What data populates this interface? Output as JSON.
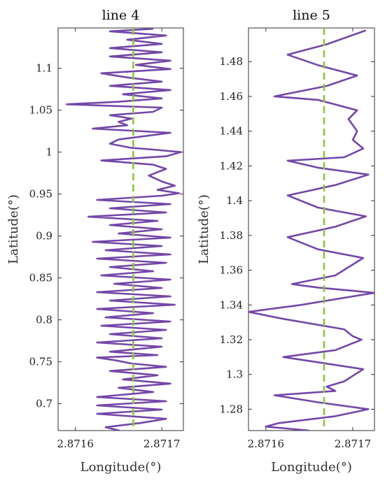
{
  "chart_data": [
    {
      "type": "line",
      "title": "line 4",
      "xlabel": "Longitude(°)",
      "ylabel": "Latitude(°)",
      "xlim": [
        2.87158,
        2.871725
      ],
      "ylim": [
        0.668,
        1.148
      ],
      "xticks": [
        2.8716,
        2.8717
      ],
      "xtick_labels": [
        "2.8716",
        "2.8717"
      ],
      "yticks": [
        0.7,
        0.75,
        0.8,
        0.85,
        0.9,
        0.95,
        1.0,
        1.05,
        1.1
      ],
      "ytick_labels": [
        "0.7",
        "0.75",
        "0.8",
        "0.85",
        "0.9",
        "0.95",
        "1",
        "1.05",
        "1.1"
      ],
      "reference_x": 2.871667,
      "series": [
        {
          "points": [
            [
              2.871651,
              0.668
            ],
            [
              2.871635,
              0.672
            ],
            [
              2.871675,
              0.677
            ],
            [
              2.871705,
              0.682
            ],
            [
              2.871625,
              0.688
            ],
            [
              2.8717,
              0.693
            ],
            [
              2.871625,
              0.698
            ],
            [
              2.871705,
              0.703
            ],
            [
              2.871625,
              0.708
            ],
            [
              2.87169,
              0.714
            ],
            [
              2.87165,
              0.719
            ],
            [
              2.87171,
              0.724
            ],
            [
              2.871655,
              0.729
            ],
            [
              2.871695,
              0.734
            ],
            [
              2.87164,
              0.739
            ],
            [
              2.871705,
              0.744
            ],
            [
              2.871665,
              0.748
            ],
            [
              2.871645,
              0.752
            ],
            [
              2.871625,
              0.755
            ],
            [
              2.871695,
              0.758
            ],
            [
              2.87164,
              0.762
            ],
            [
              2.8717,
              0.768
            ],
            [
              2.871625,
              0.773
            ],
            [
              2.8717,
              0.778
            ],
            [
              2.87164,
              0.783
            ],
            [
              2.871705,
              0.788
            ],
            [
              2.87163,
              0.793
            ],
            [
              2.87171,
              0.798
            ],
            [
              2.871635,
              0.803
            ],
            [
              2.87169,
              0.808
            ],
            [
              2.871625,
              0.813
            ],
            [
              2.871715,
              0.818
            ],
            [
              2.87164,
              0.823
            ],
            [
              2.87171,
              0.828
            ],
            [
              2.871625,
              0.833
            ],
            [
              2.8717,
              0.838
            ],
            [
              2.871645,
              0.843
            ],
            [
              2.87171,
              0.848
            ],
            [
              2.87163,
              0.853
            ],
            [
              2.87169,
              0.858
            ],
            [
              2.87164,
              0.863
            ],
            [
              2.871705,
              0.868
            ],
            [
              2.871625,
              0.873
            ],
            [
              2.87171,
              0.878
            ],
            [
              2.871635,
              0.883
            ],
            [
              2.8717,
              0.888
            ],
            [
              2.87162,
              0.893
            ],
            [
              2.87171,
              0.898
            ],
            [
              2.87165,
              0.903
            ],
            [
              2.8717,
              0.908
            ],
            [
              2.87164,
              0.913
            ],
            [
              2.871695,
              0.918
            ],
            [
              2.871615,
              0.923
            ],
            [
              2.871705,
              0.928
            ],
            [
              2.87164,
              0.933
            ],
            [
              2.87171,
              0.938
            ],
            [
              2.871625,
              0.943
            ],
            [
              2.8717,
              0.948
            ],
            [
              2.87172,
              0.951
            ],
            [
              2.871695,
              0.955
            ],
            [
              2.871715,
              0.96
            ],
            [
              2.8717,
              0.965
            ],
            [
              2.871685,
              0.972
            ],
            [
              2.871705,
              0.98
            ],
            [
              2.87169,
              0.985
            ],
            [
              2.87163,
              0.99
            ],
            [
              2.871705,
              0.995
            ],
            [
              2.871722,
              1.0
            ],
            [
              2.87169,
              1.003
            ],
            [
              2.871665,
              1.005
            ],
            [
              2.87164,
              1.01
            ],
            [
              2.87165,
              1.015
            ],
            [
              2.87171,
              1.023
            ],
            [
              2.87162,
              1.028
            ],
            [
              2.87166,
              1.032
            ],
            [
              2.87165,
              1.036
            ],
            [
              2.871665,
              1.04
            ],
            [
              2.87164,
              1.044
            ],
            [
              2.87169,
              1.048
            ],
            [
              2.8717,
              1.053
            ],
            [
              2.87159,
              1.057
            ],
            [
              2.87165,
              1.06
            ],
            [
              2.8717,
              1.064
            ],
            [
              2.871655,
              1.069
            ],
            [
              2.87171,
              1.074
            ],
            [
              2.87164,
              1.079
            ],
            [
              2.8717,
              1.084
            ],
            [
              2.87166,
              1.089
            ],
            [
              2.87163,
              1.094
            ],
            [
              2.87171,
              1.099
            ],
            [
              2.87167,
              1.104
            ],
            [
              2.87171,
              1.109
            ],
            [
              2.87164,
              1.114
            ],
            [
              2.8717,
              1.119
            ],
            [
              2.87164,
              1.124
            ],
            [
              2.8717,
              1.129
            ],
            [
              2.87166,
              1.134
            ],
            [
              2.871705,
              1.139
            ],
            [
              2.87164,
              1.144
            ],
            [
              2.87169,
              1.147
            ]
          ]
        }
      ]
    },
    {
      "type": "line",
      "title": "line 5",
      "xlabel": "Longitude(°)",
      "ylabel": "Latitude(°)",
      "xlim": [
        2.87158,
        2.871725
      ],
      "ylim": [
        1.2677,
        1.4994
      ],
      "xticks": [
        2.8716,
        2.8717
      ],
      "xtick_labels": [
        "2.8716",
        "2.8717"
      ],
      "yticks": [
        1.28,
        1.3,
        1.32,
        1.34,
        1.36,
        1.38,
        1.4,
        1.42,
        1.44,
        1.46,
        1.48
      ],
      "ytick_labels": [
        "1.28",
        "1.3",
        "1.32",
        "1.34",
        "1.36",
        "1.38",
        "1.4",
        "1.42",
        "1.44",
        "1.46",
        "1.48"
      ],
      "reference_x": 2.871667,
      "series": [
        {
          "points": [
            [
              2.87165,
              1.2677
            ],
            [
              2.8716,
              1.27
            ],
            [
              2.871615,
              1.272
            ],
            [
              2.87168,
              1.276
            ],
            [
              2.871718,
              1.28
            ],
            [
              2.87166,
              1.284
            ],
            [
              2.87161,
              1.288
            ],
            [
              2.87168,
              1.2905
            ],
            [
              2.87167,
              1.293
            ],
            [
              2.87169,
              1.296
            ],
            [
              2.871712,
              1.303
            ],
            [
              2.87166,
              1.307
            ],
            [
              2.87162,
              1.31
            ],
            [
              2.87168,
              1.314
            ],
            [
              2.87171,
              1.32
            ],
            [
              2.8717,
              1.322
            ],
            [
              2.87169,
              1.326
            ],
            [
              2.87162,
              1.332
            ],
            [
              2.87158,
              1.336
            ],
            [
              2.87164,
              1.34
            ],
            [
              2.871725,
              1.347
            ],
            [
              2.87166,
              1.35
            ],
            [
              2.87163,
              1.352
            ],
            [
              2.87168,
              1.357
            ],
            [
              2.871712,
              1.367
            ],
            [
              2.87166,
              1.372
            ],
            [
              2.871625,
              1.379
            ],
            [
              2.87168,
              1.385
            ],
            [
              2.871715,
              1.391
            ],
            [
              2.87166,
              1.396
            ],
            [
              2.871625,
              1.403
            ],
            [
              2.87168,
              1.409
            ],
            [
              2.871718,
              1.415
            ],
            [
              2.87166,
              1.419
            ],
            [
              2.871625,
              1.423
            ],
            [
              2.87169,
              1.425
            ],
            [
              2.871712,
              1.43
            ],
            [
              2.8717,
              1.435
            ],
            [
              2.871705,
              1.44
            ],
            [
              2.871695,
              1.447
            ],
            [
              2.871705,
              1.452
            ],
            [
              2.87166,
              1.458
            ],
            [
              2.87161,
              1.46
            ],
            [
              2.87167,
              1.466
            ],
            [
              2.871705,
              1.472
            ],
            [
              2.87166,
              1.478
            ],
            [
              2.871625,
              1.484
            ],
            [
              2.87167,
              1.49
            ],
            [
              2.871715,
              1.498
            ]
          ]
        }
      ]
    }
  ]
}
